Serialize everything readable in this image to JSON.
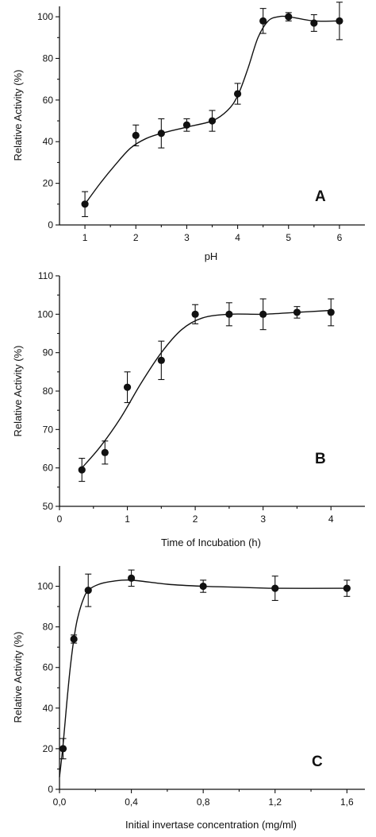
{
  "chart_data": [
    {
      "type": "scatter",
      "panel_label": "A",
      "xlabel": "pH",
      "ylabel": "Relative Activity (%)",
      "xlim": [
        0.5,
        6.5
      ],
      "ylim": [
        0,
        105
      ],
      "xticks": [
        1,
        2,
        3,
        4,
        5,
        6
      ],
      "xtick_labels": [
        "1",
        "2",
        "3",
        "4",
        "5",
        "6"
      ],
      "yticks": [
        0,
        20,
        40,
        60,
        80,
        100
      ],
      "ytick_labels": [
        "0",
        "20",
        "40",
        "60",
        "80",
        "100"
      ],
      "points": [
        {
          "x": 1.0,
          "y": 10,
          "err": 6
        },
        {
          "x": 2.0,
          "y": 43,
          "err": 5
        },
        {
          "x": 2.5,
          "y": 44,
          "err": 7
        },
        {
          "x": 3.0,
          "y": 48,
          "err": 3
        },
        {
          "x": 3.5,
          "y": 50,
          "err": 5
        },
        {
          "x": 4.0,
          "y": 63,
          "err": 5
        },
        {
          "x": 4.5,
          "y": 98,
          "err": 6
        },
        {
          "x": 5.0,
          "y": 100,
          "err": 2
        },
        {
          "x": 5.5,
          "y": 97,
          "err": 4
        },
        {
          "x": 6.0,
          "y": 98,
          "err": 9
        }
      ],
      "fit_curve": [
        [
          1.0,
          10
        ],
        [
          1.3,
          20
        ],
        [
          1.6,
          29
        ],
        [
          1.9,
          37
        ],
        [
          2.2,
          41.5
        ],
        [
          2.5,
          44
        ],
        [
          3.0,
          47
        ],
        [
          3.5,
          50
        ],
        [
          3.8,
          55
        ],
        [
          4.0,
          62
        ],
        [
          4.2,
          75
        ],
        [
          4.4,
          90
        ],
        [
          4.6,
          98
        ],
        [
          4.8,
          100
        ],
        [
          5.0,
          100
        ],
        [
          5.5,
          98
        ],
        [
          6.0,
          98
        ]
      ]
    },
    {
      "type": "scatter",
      "panel_label": "B",
      "xlabel": "Time of Incubation (h)",
      "ylabel": "Relative Activity (%)",
      "xlim": [
        0,
        4.5
      ],
      "ylim": [
        50,
        110
      ],
      "xticks": [
        0,
        1,
        2,
        3,
        4
      ],
      "xtick_labels": [
        "0",
        "1",
        "2",
        "3",
        "4"
      ],
      "yticks": [
        50,
        60,
        70,
        80,
        90,
        100,
        110
      ],
      "ytick_labels": [
        "50",
        "60",
        "70",
        "80",
        "90",
        "100",
        "110"
      ],
      "points": [
        {
          "x": 0.33,
          "y": 59.5,
          "err": 3
        },
        {
          "x": 0.67,
          "y": 64,
          "err": 3
        },
        {
          "x": 1.0,
          "y": 81,
          "err": 4
        },
        {
          "x": 1.5,
          "y": 88,
          "err": 5
        },
        {
          "x": 2.0,
          "y": 100,
          "err": 2.5
        },
        {
          "x": 2.5,
          "y": 100,
          "err": 3
        },
        {
          "x": 3.0,
          "y": 100,
          "err": 4
        },
        {
          "x": 3.5,
          "y": 100.5,
          "err": 1.5
        },
        {
          "x": 4.0,
          "y": 100.5,
          "err": 3.5
        }
      ],
      "fit_curve": [
        [
          0.33,
          60
        ],
        [
          0.6,
          65.5
        ],
        [
          0.9,
          73
        ],
        [
          1.2,
          82
        ],
        [
          1.5,
          90
        ],
        [
          1.8,
          96
        ],
        [
          2.1,
          99
        ],
        [
          2.5,
          100
        ],
        [
          3.0,
          100
        ],
        [
          3.5,
          100.5
        ],
        [
          4.0,
          101
        ]
      ]
    },
    {
      "type": "scatter",
      "panel_label": "C",
      "xlabel": "Initial invertase concentration (mg/ml)",
      "ylabel": "Relative Activity (%)",
      "xlim": [
        0,
        1.7
      ],
      "ylim": [
        0,
        110
      ],
      "xticks": [
        0,
        0.4,
        0.8,
        1.2,
        1.6
      ],
      "xtick_labels": [
        "0,0",
        "0,4",
        "0,8",
        "1,2",
        "1,6"
      ],
      "yticks": [
        0,
        20,
        40,
        60,
        80,
        100
      ],
      "ytick_labels": [
        "0",
        "20",
        "40",
        "60",
        "80",
        "100"
      ],
      "points": [
        {
          "x": 0.02,
          "y": 20,
          "err": 5
        },
        {
          "x": 0.08,
          "y": 74,
          "err": 2
        },
        {
          "x": 0.16,
          "y": 98,
          "err": 8
        },
        {
          "x": 0.4,
          "y": 104,
          "err": 4
        },
        {
          "x": 0.8,
          "y": 100,
          "err": 3
        },
        {
          "x": 1.2,
          "y": 99,
          "err": 6
        },
        {
          "x": 1.6,
          "y": 99,
          "err": 4
        }
      ],
      "fit_curve": [
        [
          0.0,
          6
        ],
        [
          0.02,
          22
        ],
        [
          0.04,
          42
        ],
        [
          0.06,
          60
        ],
        [
          0.08,
          74
        ],
        [
          0.1,
          84
        ],
        [
          0.13,
          93
        ],
        [
          0.16,
          98
        ],
        [
          0.22,
          101
        ],
        [
          0.3,
          102.5
        ],
        [
          0.4,
          103
        ],
        [
          0.6,
          101
        ],
        [
          0.8,
          100
        ],
        [
          1.0,
          99.5
        ],
        [
          1.2,
          99
        ],
        [
          1.6,
          99
        ]
      ]
    }
  ]
}
